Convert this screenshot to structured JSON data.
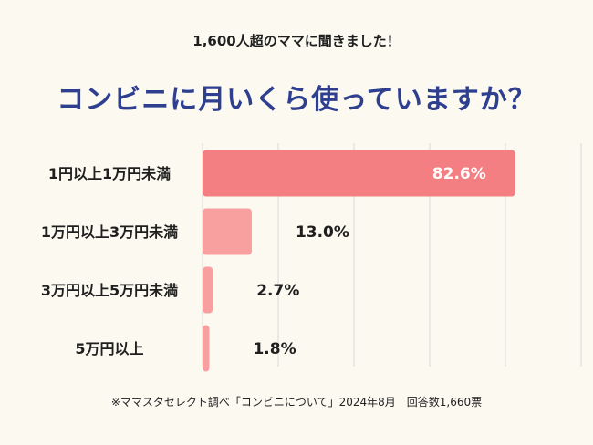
{
  "header": {
    "subtitle": "1,600人超のママに聞きました！",
    "title": "コンビニに月いくら使っていますか？"
  },
  "footer": {
    "note": "※ママスタセレクト調べ「コンビニについて」2024年8月　回答数1,660票"
  },
  "colors": {
    "background": "#fbf9f0",
    "title": "#2e3f8f",
    "bar_top": "#f47f82",
    "bar_other": "#f89fa0",
    "grid": "#d9d9d9",
    "label": "#1f1f1f",
    "top_value_text": "#ffffff"
  },
  "chart_data": {
    "type": "bar",
    "orientation": "horizontal",
    "categories": [
      "1円以上1万円未満",
      "1万円以上3万円未満",
      "3万円以上5万円未満",
      "5万円以上"
    ],
    "values": [
      82.6,
      13.0,
      2.7,
      1.8
    ],
    "value_labels": [
      "82.6%",
      "13.0%",
      "2.7%",
      "1.8%"
    ],
    "xlim": [
      0,
      100
    ],
    "grid": true,
    "legend": "none"
  }
}
